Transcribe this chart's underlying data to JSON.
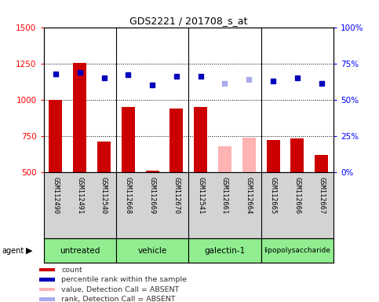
{
  "title": "GDS2221 / 201708_s_at",
  "samples": [
    "GSM112490",
    "GSM112491",
    "GSM112540",
    "GSM112668",
    "GSM112669",
    "GSM112670",
    "GSM112541",
    "GSM112661",
    "GSM112664",
    "GSM112665",
    "GSM112666",
    "GSM112667"
  ],
  "bar_values": [
    1000,
    1255,
    710,
    950,
    510,
    940,
    950,
    680,
    740,
    720,
    730,
    620
  ],
  "bar_colors": [
    "#cc0000",
    "#cc0000",
    "#cc0000",
    "#cc0000",
    "#cc0000",
    "#cc0000",
    "#cc0000",
    "#ffb3b3",
    "#ffb3b3",
    "#cc0000",
    "#cc0000",
    "#cc0000"
  ],
  "dot_values": [
    68,
    69,
    65,
    67,
    60,
    66,
    66,
    61,
    64,
    63,
    65,
    61
  ],
  "dot_colors": [
    "#0000bb",
    "#0000bb",
    "#0000bb",
    "#0000bb",
    "#0000bb",
    "#0000bb",
    "#0000bb",
    "#aaaaee",
    "#aaaaee",
    "#0000bb",
    "#0000bb",
    "#0000bb"
  ],
  "ylim_left": [
    500,
    1500
  ],
  "ylim_right": [
    0,
    100
  ],
  "yticks_left": [
    500,
    750,
    1000,
    1250,
    1500
  ],
  "yticks_right": [
    0,
    25,
    50,
    75,
    100
  ],
  "yticklabels_right": [
    "0%",
    "25%",
    "50%",
    "75%",
    "100%"
  ],
  "group_extents": [
    [
      0,
      2,
      "untreated"
    ],
    [
      3,
      5,
      "vehicle"
    ],
    [
      6,
      8,
      "galectin-1"
    ],
    [
      9,
      11,
      "lipopolysaccharide"
    ]
  ],
  "group_color": "#90ee90",
  "bar_width": 0.55,
  "bg_color_sample": "#d3d3d3",
  "legend_items": [
    {
      "label": "count",
      "color": "#cc0000"
    },
    {
      "label": "percentile rank within the sample",
      "color": "#0000bb"
    },
    {
      "label": "value, Detection Call = ABSENT",
      "color": "#ffb3b3"
    },
    {
      "label": "rank, Detection Call = ABSENT",
      "color": "#aaaaee"
    }
  ]
}
